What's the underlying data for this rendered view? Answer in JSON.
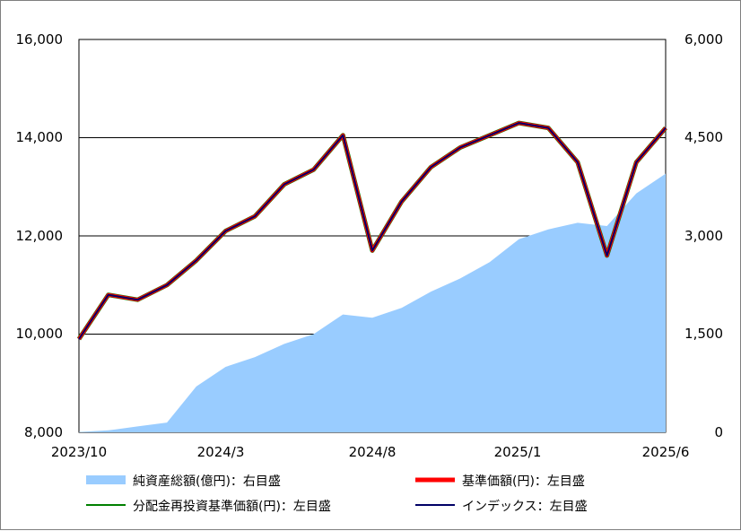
{
  "chart_data": {
    "type": "line",
    "title": "",
    "x": [
      "2023/10",
      "2023/11",
      "2023/12",
      "2024/1",
      "2024/2",
      "2024/3",
      "2024/4",
      "2024/5",
      "2024/6",
      "2024/7",
      "2024/8",
      "2024/9",
      "2024/10",
      "2024/11",
      "2024/12",
      "2025/1",
      "2025/2",
      "2025/3",
      "2025/4",
      "2025/5",
      "2025/6"
    ],
    "x_tick_labels": [
      "2023/10",
      "2024/3",
      "2024/8",
      "2025/1",
      "2025/6"
    ],
    "y_left": {
      "min": 8000,
      "max": 16000,
      "ticks": [
        "8,000",
        "10,000",
        "12,000",
        "14,000",
        "16,000"
      ]
    },
    "y_right": {
      "min": 0,
      "max": 6000,
      "ticks": [
        "0",
        "1,500",
        "3,000",
        "4,500",
        "6,000"
      ]
    },
    "series": [
      {
        "name": "純資産総額(億円)：右目盛",
        "axis": "right",
        "kind": "area",
        "color": "#99ccff",
        "values": [
          5,
          30,
          90,
          150,
          700,
          1000,
          1150,
          1350,
          1500,
          1800,
          1750,
          1900,
          2150,
          2350,
          2600,
          2950,
          3100,
          3200,
          3150,
          3650,
          3950
        ]
      },
      {
        "name": "基準価額(円)：左目盛",
        "axis": "left",
        "kind": "line",
        "color": "#ff0000",
        "values": [
          9900,
          10800,
          10700,
          11000,
          11500,
          12100,
          12400,
          13050,
          13350,
          14050,
          11700,
          12700,
          13400,
          13800,
          14050,
          14300,
          14200,
          13500,
          11600,
          13500,
          14200
        ]
      },
      {
        "name": "分配金再投資基準価額(円)：左目盛",
        "axis": "left",
        "kind": "line",
        "color": "#008000",
        "values": [
          9900,
          10800,
          10700,
          11000,
          11500,
          12100,
          12400,
          13050,
          13350,
          14050,
          11700,
          12700,
          13400,
          13800,
          14050,
          14300,
          14200,
          13500,
          11600,
          13500,
          14200
        ]
      },
      {
        "name": "インデックス：左目盛",
        "axis": "left",
        "kind": "line",
        "color": "#000066",
        "values": [
          9900,
          10800,
          10700,
          11000,
          11500,
          12100,
          12400,
          13050,
          13350,
          14050,
          11700,
          12700,
          13400,
          13800,
          14050,
          14300,
          14200,
          13500,
          11600,
          13500,
          14200
        ]
      }
    ]
  }
}
